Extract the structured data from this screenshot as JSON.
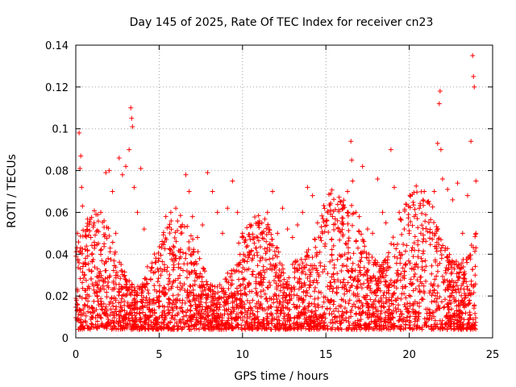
{
  "chart_data": {
    "type": "scatter",
    "title": "Day 145 of 2025, Rate Of TEC Index for receiver cn23",
    "xlabel": "GPS time / hours",
    "ylabel": "ROTI / TECUs",
    "xlim": [
      0,
      25
    ],
    "ylim": [
      0,
      0.14
    ],
    "xticks": [
      "0",
      "5",
      "10",
      "15",
      "20",
      "25"
    ],
    "yticks": [
      "0",
      "0.02",
      "0.04",
      "0.06",
      "0.08",
      "0.1",
      "0.12",
      "0.14"
    ],
    "grid": true,
    "marker": "+",
    "series": [
      {
        "color": "#ff0000",
        "points": [
          [
            0.05,
            0.018
          ],
          [
            0.1,
            0.05
          ],
          [
            0.2,
            0.098
          ],
          [
            0.25,
            0.081
          ],
          [
            0.3,
            0.087
          ],
          [
            0.35,
            0.072
          ],
          [
            0.4,
            0.063
          ],
          [
            0.5,
            0.03
          ],
          [
            0.7,
            0.042
          ],
          [
            0.9,
            0.048
          ],
          [
            1.1,
            0.055
          ],
          [
            1.3,
            0.033
          ],
          [
            1.5,
            0.06
          ],
          [
            1.7,
            0.045
          ],
          [
            1.8,
            0.079
          ],
          [
            2.0,
            0.08
          ],
          [
            2.2,
            0.07
          ],
          [
            2.4,
            0.05
          ],
          [
            2.6,
            0.086
          ],
          [
            2.8,
            0.078
          ],
          [
            3.0,
            0.082
          ],
          [
            3.2,
            0.09
          ],
          [
            3.3,
            0.11
          ],
          [
            3.35,
            0.105
          ],
          [
            3.4,
            0.101
          ],
          [
            3.5,
            0.072
          ],
          [
            3.7,
            0.06
          ],
          [
            3.9,
            0.081
          ],
          [
            4.1,
            0.052
          ],
          [
            4.3,
            0.034
          ],
          [
            4.5,
            0.032
          ],
          [
            4.7,
            0.025
          ],
          [
            4.9,
            0.018
          ],
          [
            5.1,
            0.03
          ],
          [
            5.4,
            0.058
          ],
          [
            5.7,
            0.06
          ],
          [
            6.0,
            0.062
          ],
          [
            6.3,
            0.05
          ],
          [
            6.6,
            0.078
          ],
          [
            6.8,
            0.07
          ],
          [
            7.0,
            0.058
          ],
          [
            7.3,
            0.048
          ],
          [
            7.6,
            0.054
          ],
          [
            7.9,
            0.079
          ],
          [
            8.2,
            0.07
          ],
          [
            8.5,
            0.06
          ],
          [
            8.8,
            0.05
          ],
          [
            9.1,
            0.062
          ],
          [
            9.4,
            0.075
          ],
          [
            9.7,
            0.06
          ],
          [
            10.0,
            0.05
          ],
          [
            10.3,
            0.044
          ],
          [
            10.6,
            0.038
          ],
          [
            10.9,
            0.048
          ],
          [
            11.2,
            0.05
          ],
          [
            11.5,
            0.06
          ],
          [
            11.8,
            0.07
          ],
          [
            12.1,
            0.05
          ],
          [
            12.4,
            0.062
          ],
          [
            12.7,
            0.052
          ],
          [
            13.0,
            0.048
          ],
          [
            13.3,
            0.054
          ],
          [
            13.6,
            0.06
          ],
          [
            13.9,
            0.072
          ],
          [
            14.2,
            0.068
          ],
          [
            14.5,
            0.055
          ],
          [
            14.8,
            0.05
          ],
          [
            15.1,
            0.06
          ],
          [
            15.4,
            0.058
          ],
          [
            15.7,
            0.056
          ],
          [
            16.0,
            0.062
          ],
          [
            16.3,
            0.07
          ],
          [
            16.5,
            0.094
          ],
          [
            16.55,
            0.085
          ],
          [
            16.6,
            0.075
          ],
          [
            16.8,
            0.06
          ],
          [
            17.0,
            0.058
          ],
          [
            17.2,
            0.082
          ],
          [
            17.5,
            0.052
          ],
          [
            17.8,
            0.05
          ],
          [
            18.1,
            0.076
          ],
          [
            18.4,
            0.06
          ],
          [
            18.6,
            0.055
          ],
          [
            18.9,
            0.09
          ],
          [
            19.1,
            0.072
          ],
          [
            19.4,
            0.06
          ],
          [
            19.7,
            0.052
          ],
          [
            20.0,
            0.05
          ],
          [
            20.3,
            0.058
          ],
          [
            20.6,
            0.062
          ],
          [
            20.9,
            0.07
          ],
          [
            21.2,
            0.064
          ],
          [
            21.5,
            0.07
          ],
          [
            21.7,
            0.093
          ],
          [
            21.8,
            0.112
          ],
          [
            21.85,
            0.118
          ],
          [
            21.9,
            0.09
          ],
          [
            22.0,
            0.076
          ],
          [
            22.3,
            0.071
          ],
          [
            22.6,
            0.066
          ],
          [
            22.9,
            0.074
          ],
          [
            23.2,
            0.05
          ],
          [
            23.5,
            0.068
          ],
          [
            23.7,
            0.094
          ],
          [
            23.8,
            0.135
          ],
          [
            23.85,
            0.125
          ],
          [
            23.9,
            0.12
          ],
          [
            24.0,
            0.075
          ],
          [
            24.0,
            0.05
          ],
          [
            23.95,
            0.03
          ]
        ]
      }
    ]
  }
}
